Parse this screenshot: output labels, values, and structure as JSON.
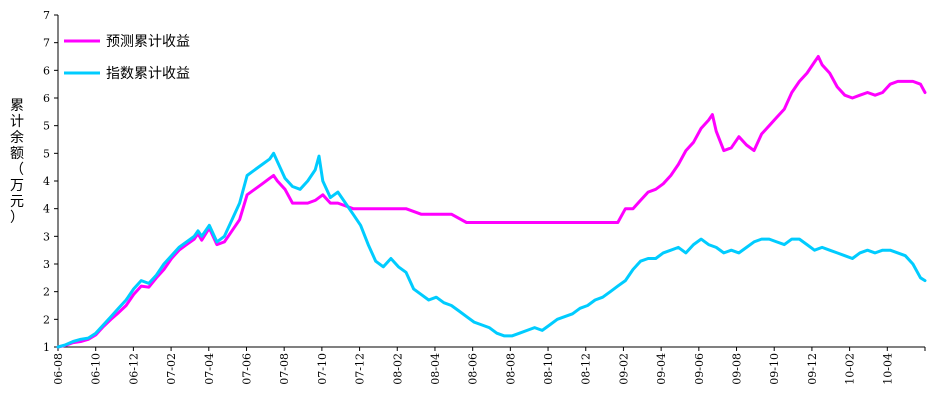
{
  "chart_data": {
    "type": "line",
    "title": "",
    "xlabel": "",
    "ylabel": "累计余额（万元）",
    "y_ticks": [
      "1",
      "2",
      "2",
      "3",
      "3",
      "4",
      "4",
      "5",
      "5",
      "6",
      "6",
      "7",
      "7"
    ],
    "ylim": [
      1,
      7
    ],
    "grid": false,
    "legend_position": "top-left",
    "x_ticks": [
      "06-08",
      "06-10",
      "06-12",
      "07-02",
      "07-04",
      "07-06",
      "07-08",
      "07-10",
      "07-12",
      "08-02",
      "08-04",
      "08-06",
      "08-08",
      "08-10",
      "08-12",
      "09-02",
      "09-04",
      "09-06",
      "09-08",
      "09-10",
      "09-12",
      "10-02",
      "10-04"
    ],
    "series": [
      {
        "name": "预测累计收益",
        "color": "#ff00ff",
        "points": [
          [
            0,
            1.0
          ],
          [
            0.5,
            1.03
          ],
          [
            1,
            1.08
          ],
          [
            1.5,
            1.1
          ],
          [
            2,
            1.14
          ],
          [
            2.5,
            1.22
          ],
          [
            3,
            1.37
          ],
          [
            3.5,
            1.5
          ],
          [
            4,
            1.62
          ],
          [
            4.5,
            1.75
          ],
          [
            5,
            1.95
          ],
          [
            5.5,
            2.1
          ],
          [
            6,
            2.08
          ],
          [
            6.5,
            2.25
          ],
          [
            7,
            2.4
          ],
          [
            7.5,
            2.6
          ],
          [
            8,
            2.75
          ],
          [
            8.5,
            2.85
          ],
          [
            9,
            2.95
          ],
          [
            9.25,
            3.05
          ],
          [
            9.5,
            2.93
          ],
          [
            10,
            3.15
          ],
          [
            10.5,
            2.85
          ],
          [
            11,
            2.9
          ],
          [
            11.5,
            3.1
          ],
          [
            12,
            3.3
          ],
          [
            12.5,
            3.75
          ],
          [
            13,
            3.85
          ],
          [
            13.5,
            3.95
          ],
          [
            14,
            4.05
          ],
          [
            14.25,
            4.1
          ],
          [
            14.5,
            4.0
          ],
          [
            15,
            3.85
          ],
          [
            15.5,
            3.6
          ],
          [
            16,
            3.6
          ],
          [
            16.5,
            3.6
          ],
          [
            17,
            3.65
          ],
          [
            17.5,
            3.75
          ],
          [
            18,
            3.6
          ],
          [
            18.5,
            3.6
          ],
          [
            19,
            3.55
          ],
          [
            19.5,
            3.5
          ],
          [
            20,
            3.5
          ],
          [
            21,
            3.5
          ],
          [
            22,
            3.5
          ],
          [
            23,
            3.5
          ],
          [
            24,
            3.4
          ],
          [
            25,
            3.4
          ],
          [
            26,
            3.4
          ],
          [
            27,
            3.25
          ],
          [
            28,
            3.25
          ],
          [
            29,
            3.25
          ],
          [
            30,
            3.25
          ],
          [
            31,
            3.25
          ],
          [
            32,
            3.25
          ],
          [
            33,
            3.25
          ],
          [
            34,
            3.25
          ],
          [
            35,
            3.25
          ],
          [
            36,
            3.25
          ],
          [
            37,
            3.25
          ],
          [
            37.5,
            3.5
          ],
          [
            38,
            3.5
          ],
          [
            38.5,
            3.65
          ],
          [
            39,
            3.8
          ],
          [
            39.5,
            3.85
          ],
          [
            40,
            3.95
          ],
          [
            40.5,
            4.1
          ],
          [
            41,
            4.3
          ],
          [
            41.5,
            4.55
          ],
          [
            42,
            4.7
          ],
          [
            42.5,
            4.95
          ],
          [
            43,
            5.1
          ],
          [
            43.25,
            5.2
          ],
          [
            43.5,
            4.9
          ],
          [
            44,
            4.55
          ],
          [
            44.5,
            4.6
          ],
          [
            45,
            4.8
          ],
          [
            45.5,
            4.65
          ],
          [
            46,
            4.55
          ],
          [
            46.5,
            4.85
          ],
          [
            47,
            5.0
          ],
          [
            47.5,
            5.15
          ],
          [
            48,
            5.3
          ],
          [
            48.5,
            5.6
          ],
          [
            49,
            5.8
          ],
          [
            49.5,
            5.95
          ],
          [
            50,
            6.15
          ],
          [
            50.25,
            6.25
          ],
          [
            50.5,
            6.1
          ],
          [
            51,
            5.95
          ],
          [
            51.5,
            5.7
          ],
          [
            52,
            5.55
          ],
          [
            52.5,
            5.5
          ],
          [
            53,
            5.55
          ],
          [
            53.5,
            5.6
          ],
          [
            54,
            5.55
          ],
          [
            54.5,
            5.6
          ],
          [
            55,
            5.75
          ],
          [
            55.5,
            5.8
          ],
          [
            56,
            5.8
          ],
          [
            56.5,
            5.8
          ],
          [
            57,
            5.75
          ],
          [
            57.3,
            5.6
          ]
        ]
      },
      {
        "name": "指数累计收益",
        "color": "#00ccff",
        "points": [
          [
            0,
            1.0
          ],
          [
            0.5,
            1.04
          ],
          [
            1,
            1.1
          ],
          [
            1.5,
            1.14
          ],
          [
            2,
            1.16
          ],
          [
            2.5,
            1.25
          ],
          [
            3,
            1.4
          ],
          [
            3.5,
            1.55
          ],
          [
            4,
            1.7
          ],
          [
            4.5,
            1.85
          ],
          [
            5,
            2.05
          ],
          [
            5.5,
            2.2
          ],
          [
            6,
            2.15
          ],
          [
            6.5,
            2.3
          ],
          [
            7,
            2.5
          ],
          [
            7.5,
            2.65
          ],
          [
            8,
            2.8
          ],
          [
            8.5,
            2.9
          ],
          [
            9,
            3.0
          ],
          [
            9.25,
            3.1
          ],
          [
            9.5,
            3.0
          ],
          [
            10,
            3.2
          ],
          [
            10.5,
            2.9
          ],
          [
            11,
            3.0
          ],
          [
            11.5,
            3.3
          ],
          [
            12,
            3.6
          ],
          [
            12.5,
            4.1
          ],
          [
            13,
            4.2
          ],
          [
            13.5,
            4.3
          ],
          [
            14,
            4.4
          ],
          [
            14.25,
            4.5
          ],
          [
            14.5,
            4.35
          ],
          [
            15,
            4.05
          ],
          [
            15.5,
            3.9
          ],
          [
            16,
            3.85
          ],
          [
            16.5,
            4.0
          ],
          [
            17,
            4.2
          ],
          [
            17.25,
            4.45
          ],
          [
            17.5,
            4.0
          ],
          [
            18,
            3.7
          ],
          [
            18.5,
            3.8
          ],
          [
            19,
            3.6
          ],
          [
            19.5,
            3.4
          ],
          [
            20,
            3.2
          ],
          [
            20.5,
            2.85
          ],
          [
            21,
            2.55
          ],
          [
            21.5,
            2.45
          ],
          [
            22,
            2.6
          ],
          [
            22.5,
            2.45
          ],
          [
            23,
            2.35
          ],
          [
            23.5,
            2.05
          ],
          [
            24,
            1.95
          ],
          [
            24.5,
            1.85
          ],
          [
            25,
            1.9
          ],
          [
            25.5,
            1.8
          ],
          [
            26,
            1.75
          ],
          [
            26.5,
            1.65
          ],
          [
            27,
            1.55
          ],
          [
            27.5,
            1.45
          ],
          [
            28,
            1.4
          ],
          [
            28.5,
            1.35
          ],
          [
            29,
            1.25
          ],
          [
            29.5,
            1.2
          ],
          [
            30,
            1.2
          ],
          [
            30.5,
            1.25
          ],
          [
            31,
            1.3
          ],
          [
            31.5,
            1.35
          ],
          [
            32,
            1.3
          ],
          [
            32.5,
            1.4
          ],
          [
            33,
            1.5
          ],
          [
            33.5,
            1.55
          ],
          [
            34,
            1.6
          ],
          [
            34.5,
            1.7
          ],
          [
            35,
            1.75
          ],
          [
            35.5,
            1.85
          ],
          [
            36,
            1.9
          ],
          [
            36.5,
            2.0
          ],
          [
            37,
            2.1
          ],
          [
            37.5,
            2.2
          ],
          [
            38,
            2.4
          ],
          [
            38.5,
            2.55
          ],
          [
            39,
            2.6
          ],
          [
            39.5,
            2.6
          ],
          [
            40,
            2.7
          ],
          [
            40.5,
            2.75
          ],
          [
            41,
            2.8
          ],
          [
            41.5,
            2.7
          ],
          [
            42,
            2.85
          ],
          [
            42.5,
            2.95
          ],
          [
            43,
            2.85
          ],
          [
            43.5,
            2.8
          ],
          [
            44,
            2.7
          ],
          [
            44.5,
            2.75
          ],
          [
            45,
            2.7
          ],
          [
            45.5,
            2.8
          ],
          [
            46,
            2.9
          ],
          [
            46.5,
            2.95
          ],
          [
            47,
            2.95
          ],
          [
            47.5,
            2.9
          ],
          [
            48,
            2.85
          ],
          [
            48.5,
            2.95
          ],
          [
            49,
            2.95
          ],
          [
            49.5,
            2.85
          ],
          [
            50,
            2.75
          ],
          [
            50.5,
            2.8
          ],
          [
            51,
            2.75
          ],
          [
            51.5,
            2.7
          ],
          [
            52,
            2.65
          ],
          [
            52.5,
            2.6
          ],
          [
            53,
            2.7
          ],
          [
            53.5,
            2.75
          ],
          [
            54,
            2.7
          ],
          [
            54.5,
            2.75
          ],
          [
            55,
            2.75
          ],
          [
            55.5,
            2.7
          ],
          [
            56,
            2.65
          ],
          [
            56.5,
            2.5
          ],
          [
            57,
            2.25
          ],
          [
            57.3,
            2.2
          ]
        ]
      }
    ],
    "x_range": [
      0,
      57.3
    ]
  }
}
